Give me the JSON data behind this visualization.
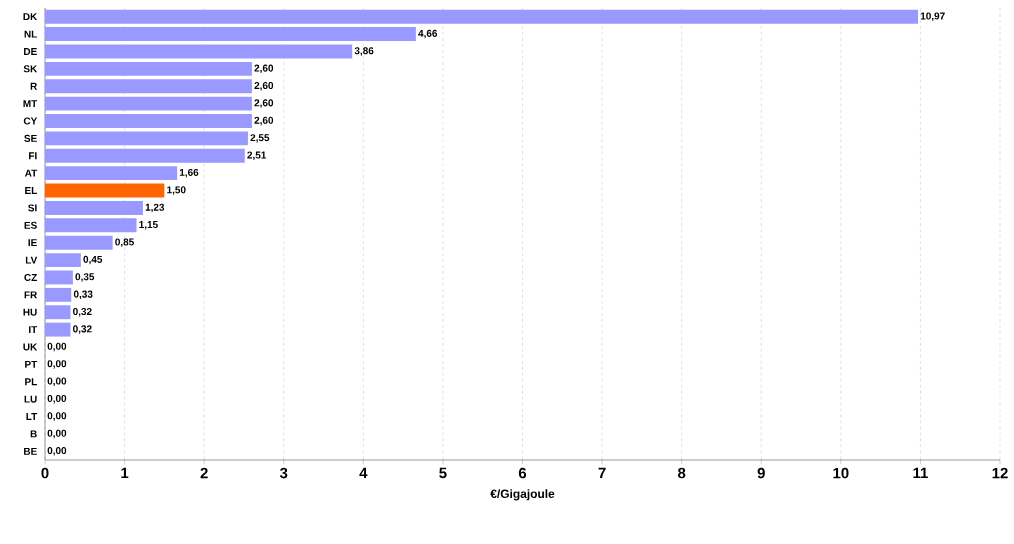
{
  "chart_data": {
    "type": "bar",
    "orientation": "horizontal",
    "xlabel": "€/Gigajoule",
    "categories": [
      "DK",
      "NL",
      "DE",
      "SK",
      "R",
      "MT",
      "CY",
      "SE",
      "FI",
      "AT",
      "EL",
      "SI",
      "ES",
      "IE",
      "LV",
      "CZ",
      "FR",
      "HU",
      "IT",
      "UK",
      "PT",
      "PL",
      "LU",
      "LT",
      "B",
      "BE"
    ],
    "values": [
      10.97,
      4.66,
      3.86,
      2.6,
      2.6,
      2.6,
      2.6,
      2.55,
      2.51,
      1.66,
      1.5,
      1.23,
      1.15,
      0.85,
      0.45,
      0.35,
      0.33,
      0.32,
      0.32,
      0,
      0,
      0,
      0,
      0,
      0,
      0
    ],
    "value_labels": [
      "10,97",
      "4,66",
      "3,86",
      "2,60",
      "2,60",
      "2,60",
      "2,60",
      "2,55",
      "2,51",
      "1,66",
      "1,50",
      "1,23",
      "1,15",
      "0,85",
      "0,45",
      "0,35",
      "0,33",
      "0,32",
      "0,32",
      "0,00",
      "0,00",
      "0,00",
      "0,00",
      "0,00",
      "0,00",
      "0,00"
    ],
    "colors": [
      "#9999ff",
      "#9999ff",
      "#9999ff",
      "#9999ff",
      "#9999ff",
      "#9999ff",
      "#9999ff",
      "#9999ff",
      "#9999ff",
      "#9999ff",
      "#ff6600",
      "#9999ff",
      "#9999ff",
      "#9999ff",
      "#9999ff",
      "#9999ff",
      "#9999ff",
      "#9999ff",
      "#9999ff",
      "#9999ff",
      "#9999ff",
      "#9999ff",
      "#9999ff",
      "#9999ff",
      "#9999ff",
      "#9999ff"
    ],
    "xlim": [
      0,
      12
    ],
    "xticks": [
      0,
      1,
      2,
      3,
      4,
      5,
      6,
      7,
      8,
      9,
      10,
      11,
      12
    ],
    "grid": "x"
  }
}
